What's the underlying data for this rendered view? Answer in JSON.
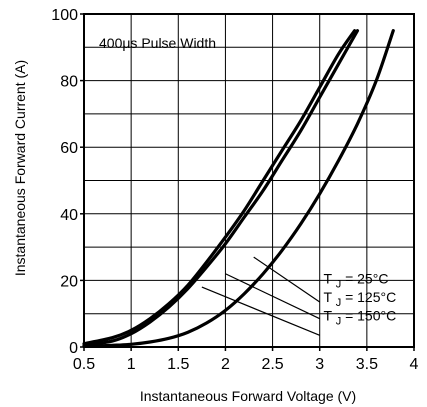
{
  "chart_data": {
    "type": "line",
    "title": "",
    "xlabel": "Instantaneous Forward Voltage (V)",
    "ylabel": "Instantaneous Forward Current (A)",
    "xlim": [
      0.5,
      4
    ],
    "ylim": [
      0,
      100
    ],
    "xticks": [
      "0.5",
      "1",
      "1.5",
      "2",
      "2.5",
      "3",
      "3.5",
      "4"
    ],
    "yticks": [
      "0",
      "20",
      "40",
      "60",
      "80",
      "100"
    ],
    "grid": true,
    "annotation": "400μs Pulse Width",
    "legend_placement": "lower-right (inline labels with leader lines)",
    "series": [
      {
        "name": "T_J = 25°C",
        "prefix": "T",
        "sub": "J",
        "suffix": "= 25°C",
        "x": [
          0.5,
          0.8,
          1.0,
          1.2,
          1.4,
          1.6,
          1.8,
          2.0,
          2.2,
          2.4,
          2.6,
          2.8,
          3.0,
          3.2,
          3.4
        ],
        "y": [
          0.5,
          1.8,
          4.0,
          7.5,
          12,
          17.5,
          24,
          31,
          39,
          47,
          56,
          65,
          75,
          85,
          95
        ]
      },
      {
        "name": "T_J = 125°C",
        "prefix": "T",
        "sub": "J",
        "suffix": "= 125°C",
        "x": [
          0.5,
          0.8,
          1.0,
          1.2,
          1.4,
          1.6,
          1.8,
          2.0,
          2.2,
          2.4,
          2.6,
          2.8,
          3.0,
          3.2,
          3.37
        ],
        "y": [
          1.0,
          2.8,
          5.0,
          8.5,
          13,
          18.5,
          25.5,
          33,
          41,
          50,
          59,
          68,
          78,
          88,
          95
        ]
      },
      {
        "name": "T_J = 150°C",
        "prefix": "T",
        "sub": "J",
        "suffix": "= 150°C",
        "x": [
          0.5,
          0.8,
          1.0,
          1.2,
          1.4,
          1.6,
          1.8,
          2.0,
          2.2,
          2.4,
          2.6,
          2.8,
          3.0,
          3.2,
          3.4,
          3.6,
          3.78
        ],
        "y": [
          0.2,
          0.5,
          0.8,
          1.5,
          2.6,
          4.4,
          7.2,
          11,
          16,
          22,
          29,
          37,
          46,
          56,
          67,
          80,
          95
        ]
      }
    ]
  }
}
